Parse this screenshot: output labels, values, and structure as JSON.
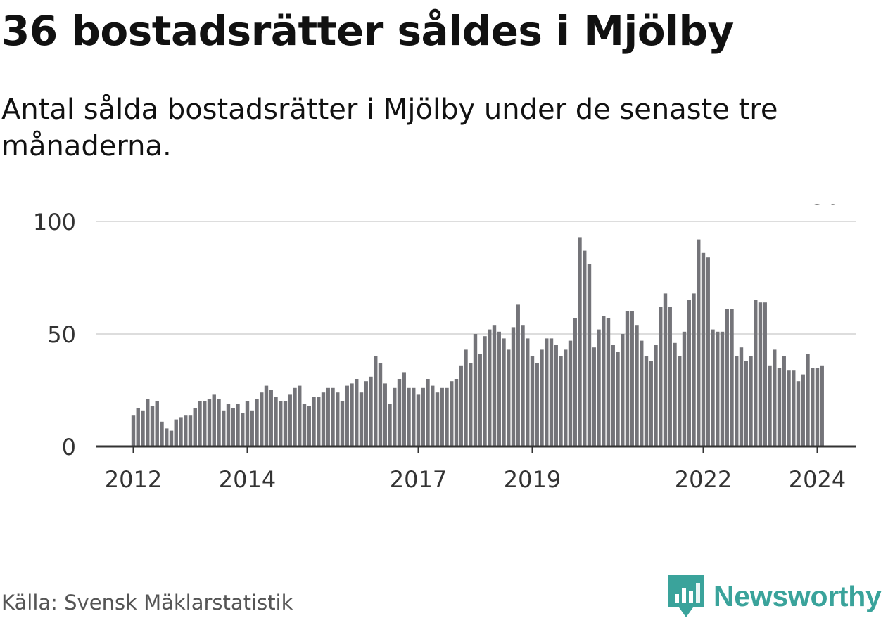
{
  "header": {
    "title": "36 bostadsrätter såldes i Mjölby",
    "subtitle": "Antal sålda bostadsrätter i Mjölby under de senaste tre månaderna."
  },
  "footer": {
    "source": "Källa: Svensk Mäklarstatistik",
    "brand": "Newsworthy"
  },
  "colors": {
    "bar": "#747479",
    "highlight": "#14a69d",
    "grid": "#dddddd",
    "axis": "#333333",
    "brand": "#3aa39b"
  },
  "chart_data": {
    "type": "bar",
    "title": "",
    "xlabel": "",
    "ylabel": "",
    "ylim": [
      0,
      100
    ],
    "yticks": [
      0,
      50,
      100
    ],
    "xtick_labels": [
      "2012",
      "2014",
      "2017",
      "2019",
      "2022",
      "2024"
    ],
    "xtick_positions": [
      0,
      24,
      60,
      84,
      120,
      144
    ],
    "highlight_label": "36",
    "highlight_index": 146,
    "values": [
      14,
      17,
      16,
      21,
      18,
      20,
      11,
      8,
      7,
      12,
      13,
      14,
      14,
      17,
      20,
      20,
      21,
      23,
      21,
      16,
      19,
      17,
      19,
      15,
      20,
      16,
      21,
      24,
      27,
      25,
      22,
      20,
      20,
      23,
      26,
      27,
      19,
      18,
      22,
      22,
      24,
      26,
      26,
      24,
      20,
      27,
      28,
      30,
      24,
      29,
      31,
      40,
      37,
      28,
      19,
      26,
      30,
      33,
      26,
      26,
      23,
      26,
      30,
      27,
      24,
      26,
      26,
      29,
      30,
      36,
      43,
      37,
      50,
      41,
      49,
      52,
      54,
      51,
      48,
      43,
      53,
      63,
      54,
      48,
      40,
      37,
      43,
      48,
      48,
      45,
      40,
      43,
      47,
      57,
      93,
      87,
      81,
      44,
      52,
      58,
      57,
      45,
      42,
      50,
      60,
      60,
      54,
      47,
      40,
      38,
      45,
      62,
      68,
      62,
      46,
      40,
      51,
      65,
      68,
      92,
      86,
      84,
      52,
      51,
      51,
      61,
      61,
      40,
      44,
      38,
      40,
      65,
      64,
      64,
      36,
      43,
      35,
      40,
      34,
      34,
      29,
      32,
      41,
      35,
      35,
      36
    ]
  }
}
